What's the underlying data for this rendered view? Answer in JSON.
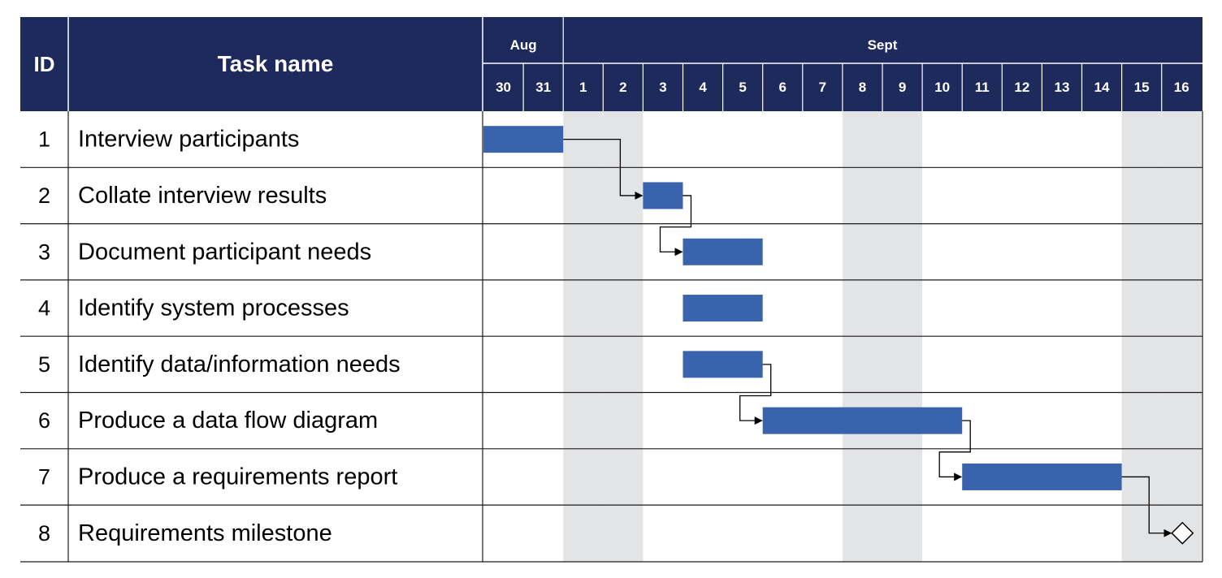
{
  "header": {
    "id_label": "ID",
    "task_label": "Task name"
  },
  "colors": {
    "header_bg": "#1f2a5c",
    "bar": "#3a63ad",
    "weekend_shade": "#e3e4e6",
    "grid_line": "#1a1a1a",
    "header_line": "#ffffff"
  },
  "chart_data": {
    "type": "gantt",
    "months": [
      {
        "name": "Aug",
        "days": [
          "30",
          "31"
        ]
      },
      {
        "name": "Sept",
        "days": [
          "1",
          "2",
          "3",
          "4",
          "5",
          "6",
          "7",
          "8",
          "9",
          "10",
          "11",
          "12",
          "13",
          "14",
          "15",
          "16"
        ]
      }
    ],
    "weekend_days": [
      "1",
      "2",
      "8",
      "9",
      "15",
      "16"
    ],
    "tasks": [
      {
        "id": "1",
        "name": "Interview participants",
        "start": "30",
        "end": "31"
      },
      {
        "id": "2",
        "name": "Collate interview results",
        "start": "3",
        "end": "3"
      },
      {
        "id": "3",
        "name": "Document participant needs",
        "start": "4",
        "end": "5"
      },
      {
        "id": "4",
        "name": "Identify system processes",
        "start": "4",
        "end": "5"
      },
      {
        "id": "5",
        "name": "Identify data/information needs",
        "start": "4",
        "end": "5"
      },
      {
        "id": "6",
        "name": "Produce a data flow diagram",
        "start": "6",
        "end": "10"
      },
      {
        "id": "7",
        "name": "Produce a requirements report",
        "start": "11",
        "end": "14"
      },
      {
        "id": "8",
        "name": "Requirements milestone",
        "milestone": "16"
      }
    ],
    "dependencies": [
      {
        "from": "1",
        "to": "2"
      },
      {
        "from": "2",
        "to": "3"
      },
      {
        "from": "5",
        "to": "6"
      },
      {
        "from": "6",
        "to": "7"
      },
      {
        "from": "7",
        "to": "8"
      }
    ]
  }
}
